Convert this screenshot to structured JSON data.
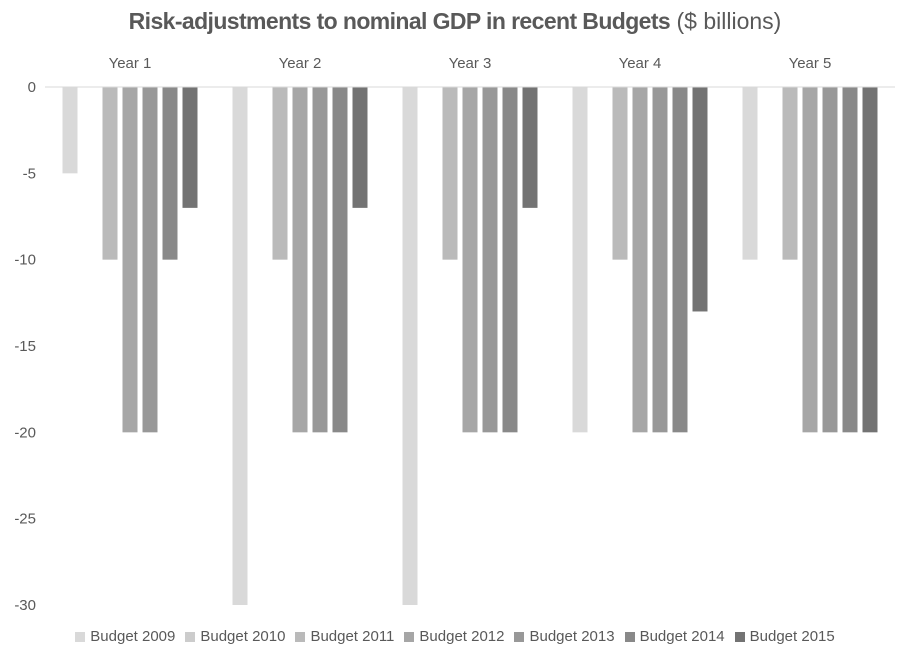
{
  "chart_data": {
    "type": "bar",
    "title_bold": "Risk-adjustments to nominal GDP in recent Budgets",
    "title_normal": " ($ billions)",
    "categories": [
      "Year 1",
      "Year 2",
      "Year 3",
      "Year 4",
      "Year 5"
    ],
    "xlabel": "",
    "ylabel": "",
    "ylim": [
      -30,
      0
    ],
    "yticks": [
      0,
      -5,
      -10,
      -15,
      -20,
      -25,
      -30
    ],
    "category_axis_position": "top",
    "grid": false,
    "legend_position": "bottom",
    "series": [
      {
        "name": "Budget 2009",
        "color": "#D9D9D9",
        "values": [
          -5,
          -30,
          -30,
          -20,
          -10
        ]
      },
      {
        "name": "Budget 2010",
        "color": "#CCCCCC",
        "values": [
          null,
          null,
          null,
          null,
          null
        ]
      },
      {
        "name": "Budget 2011",
        "color": "#BABABA",
        "values": [
          -10,
          -10,
          -10,
          -10,
          -10
        ]
      },
      {
        "name": "Budget 2012",
        "color": "#A6A6A6",
        "values": [
          -20,
          -20,
          -20,
          -20,
          -20
        ]
      },
      {
        "name": "Budget 2013",
        "color": "#989898",
        "values": [
          -20,
          -20,
          -20,
          -20,
          -20
        ]
      },
      {
        "name": "Budget 2014",
        "color": "#898989",
        "values": [
          -10,
          -20,
          -20,
          -20,
          -20
        ]
      },
      {
        "name": "Budget 2015",
        "color": "#737373",
        "values": [
          -7,
          -7,
          -7,
          -13,
          -20
        ]
      }
    ]
  }
}
